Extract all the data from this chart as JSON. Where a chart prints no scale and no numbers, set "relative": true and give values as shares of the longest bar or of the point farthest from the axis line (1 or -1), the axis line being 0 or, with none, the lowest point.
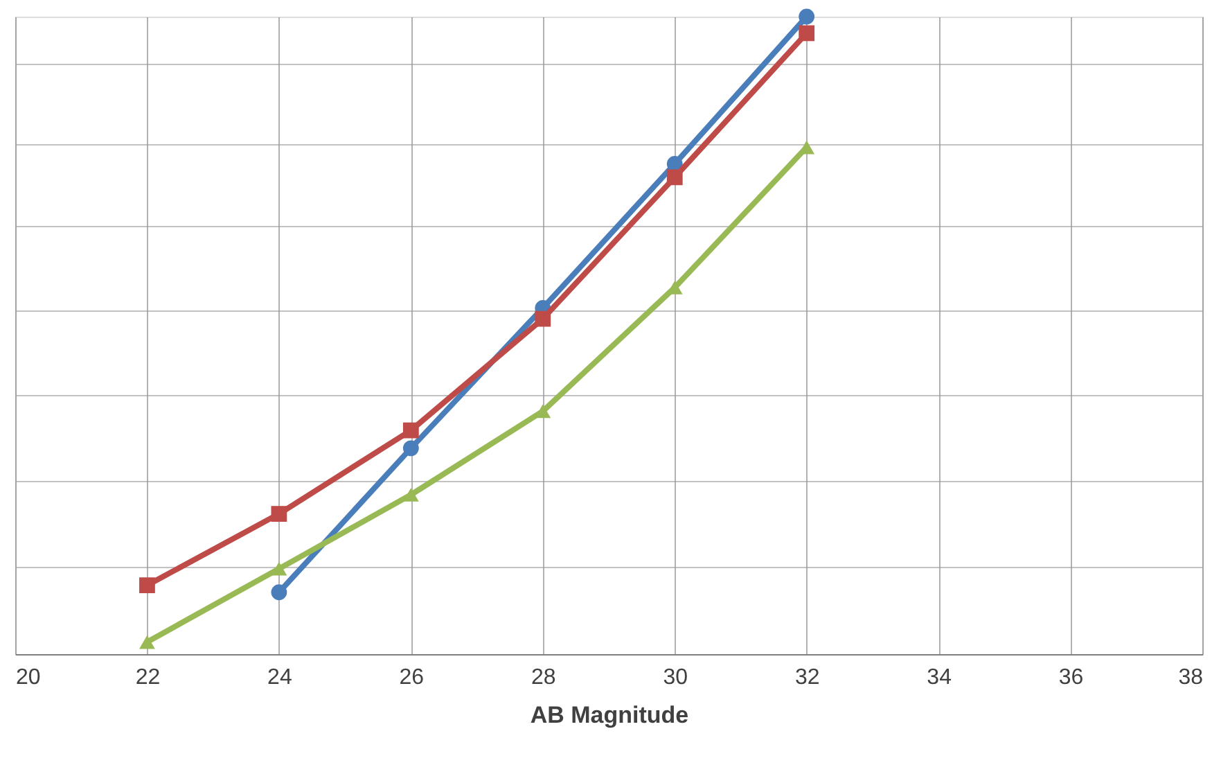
{
  "chart_data": {
    "type": "line",
    "xlabel": "AB Magnitude",
    "xlim": [
      20,
      38
    ],
    "xticks": [
      20,
      22,
      24,
      26,
      28,
      30,
      32,
      34,
      36,
      38
    ],
    "relative": true,
    "grid": true,
    "series": [
      {
        "color": "#4a7ebb",
        "marker": "circle",
        "x": [
          24,
          26,
          28,
          30,
          32
        ],
        "values": [
          0.097,
          0.323,
          0.543,
          0.769,
          1
        ]
      },
      {
        "color": "#be4b48",
        "marker": "square",
        "x": [
          22,
          24,
          26,
          28,
          30,
          32
        ],
        "values": [
          0.108,
          0.22,
          0.351,
          0.526,
          0.748,
          0.974
        ]
      },
      {
        "color": "#98b954",
        "marker": "triangle",
        "x": [
          22,
          24,
          26,
          28,
          30,
          32
        ],
        "values": [
          0.019,
          0.134,
          0.25,
          0.381,
          0.575,
          0.795
        ]
      }
    ]
  }
}
